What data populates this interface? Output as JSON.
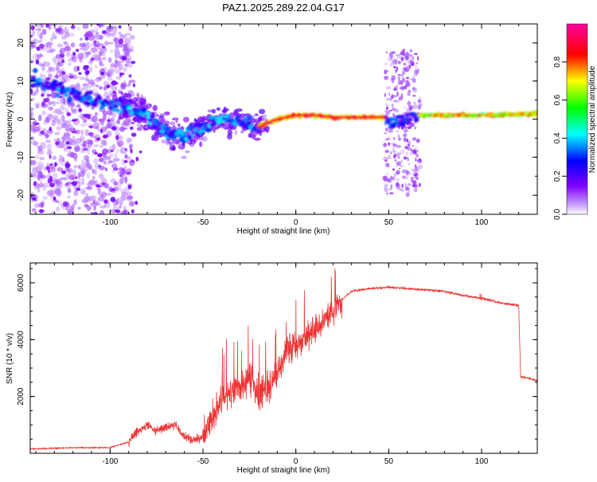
{
  "figure_title": "PAZ1.2025.289.22.04.G17",
  "chart_data": [
    {
      "type": "heatmap",
      "title": "PAZ1.2025.289.22.04.G17",
      "xlabel": "Height of straight line (km)",
      "ylabel": "Frequency (Hz)",
      "xlim": [
        -143,
        130
      ],
      "ylim": [
        -25,
        25
      ],
      "xticks": [
        -100,
        -50,
        0,
        50,
        100
      ],
      "yticks": [
        -20,
        -10,
        0,
        10,
        20
      ],
      "colorbar": {
        "label": "Normalized spectral amplitude",
        "range": [
          0,
          1
        ],
        "ticks": [
          0.0,
          0.2,
          0.4,
          0.6,
          0.8
        ],
        "tick_labels": [
          "0.0",
          "0.2",
          "0.4",
          "0.6",
          "0.8"
        ],
        "colors": [
          "#ffffff",
          "#8000ff",
          "#0000ff",
          "#00ffff",
          "#00ff00",
          "#ffff00",
          "#ff0000",
          "#ff00a0"
        ]
      },
      "ridge": {
        "x": [
          -140,
          -130,
          -120,
          -110,
          -100,
          -90,
          -80,
          -70,
          -60,
          -50,
          -40,
          -30,
          -20,
          -10,
          0,
          10,
          20,
          30,
          40,
          48,
          52,
          60,
          65,
          80,
          100,
          130
        ],
        "y": [
          10,
          8,
          6,
          5,
          4,
          3,
          1,
          -3,
          -5,
          -2,
          0,
          -1,
          -2,
          0,
          1,
          1,
          0.5,
          0.5,
          0.5,
          0.5,
          -1,
          0,
          1,
          1,
          1,
          1.5
        ]
      }
    },
    {
      "type": "line",
      "xlabel": "Height of straight line (km)",
      "ylabel": "SNR (10 * v/v)",
      "xlim": [
        -143,
        130
      ],
      "ylim": [
        0,
        6700
      ],
      "xticks": [
        -100,
        -50,
        0,
        50,
        100
      ],
      "yticks": [
        2000,
        4000,
        6000
      ],
      "color": "#ee3333",
      "series": [
        {
          "name": "SNR",
          "x": [
            -143,
            -120,
            -100,
            -90,
            -85,
            -80,
            -75,
            -70,
            -65,
            -60,
            -55,
            -50,
            -45,
            -40,
            -35,
            -30,
            -25,
            -20,
            -15,
            -10,
            -5,
            0,
            5,
            10,
            15,
            20,
            25,
            30,
            40,
            50,
            60,
            70,
            80,
            90,
            100,
            110,
            120,
            121,
            125,
            130
          ],
          "y": [
            150,
            200,
            200,
            400,
            800,
            1000,
            800,
            900,
            1000,
            600,
            450,
            600,
            1200,
            1800,
            2200,
            2400,
            2600,
            2000,
            2400,
            2800,
            3600,
            3800,
            4100,
            4300,
            4700,
            5000,
            5400,
            5700,
            5800,
            5850,
            5800,
            5750,
            5700,
            5550,
            5450,
            5300,
            5200,
            2700,
            2650,
            2550
          ]
        }
      ]
    }
  ]
}
